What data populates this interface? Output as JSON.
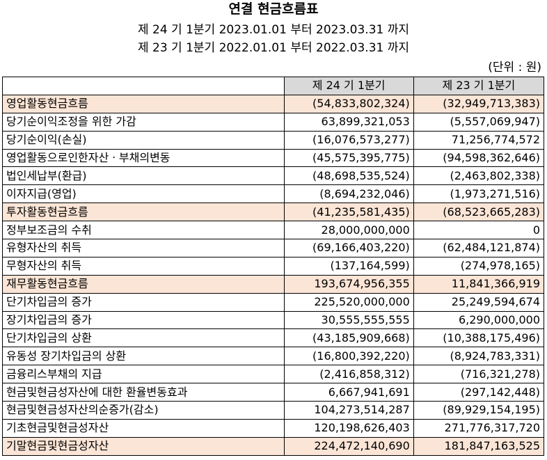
{
  "title": "연결 현금흐름표",
  "periods": [
    "제 24 기 1분기 2023.01.01 부터 2023.03.31 까지",
    "제 23 기 1분기 2022.01.01 부터 2022.03.31 까지"
  ],
  "unit": "(단위 : 원)",
  "columns": [
    "",
    "제 24 기 1분기",
    "제 23 기 1분기"
  ],
  "colors": {
    "section_bg": "#fbe5d6",
    "header_bg": "#d9d9d9"
  },
  "rows": [
    {
      "label": "영업활동현금흐름",
      "current": "(54,833,802,324)",
      "prior": "(32,949,713,383)",
      "kind": "section"
    },
    {
      "label": "당기순이익조정을 위한 가감",
      "current": "63,899,321,053",
      "prior": "(5,557,069,947)",
      "kind": "item"
    },
    {
      "label": "당기순이익(손실)",
      "current": "(16,076,573,277)",
      "prior": "71,256,774,572",
      "kind": "item"
    },
    {
      "label": "영업활동으로인한자산ㆍ부채의변동",
      "current": "(45,575,395,775)",
      "prior": "(94,598,362,646)",
      "kind": "item"
    },
    {
      "label": "법인세납부(환급)",
      "current": "(48,698,535,524)",
      "prior": "(2,463,802,338)",
      "kind": "item"
    },
    {
      "label": "이자지급(영업)",
      "current": "(8,694,232,046)",
      "prior": "(1,973,271,516)",
      "kind": "item"
    },
    {
      "label": "투자활동현금흐름",
      "current": "(41,235,581,435)",
      "prior": "(68,523,665,283)",
      "kind": "section"
    },
    {
      "label": "정부보조금의 수취",
      "current": "28,000,000,000",
      "prior": "0",
      "kind": "item"
    },
    {
      "label": "유형자산의 취득",
      "current": "(69,166,403,220)",
      "prior": "(62,484,121,874)",
      "kind": "item"
    },
    {
      "label": "무형자산의 취득",
      "current": "(137,164,599)",
      "prior": "(274,978,165)",
      "kind": "item"
    },
    {
      "label": "재무활동현금흐름",
      "current": "193,674,956,355",
      "prior": "11,841,366,919",
      "kind": "section"
    },
    {
      "label": "단기차입금의 증가",
      "current": "225,520,000,000",
      "prior": "25,249,594,674",
      "kind": "item"
    },
    {
      "label": "장기차입금의 증가",
      "current": "30,555,555,555",
      "prior": "6,290,000,000",
      "kind": "item"
    },
    {
      "label": "단기차입금의 상환",
      "current": "(43,185,909,668)",
      "prior": "(10,388,175,496)",
      "kind": "item"
    },
    {
      "label": "유동성 장기차입금의 상환",
      "current": "(16,800,392,220)",
      "prior": "(8,924,783,331)",
      "kind": "item"
    },
    {
      "label": "금융리스부채의 지급",
      "current": "(2,416,858,312)",
      "prior": "(716,321,278)",
      "kind": "item"
    },
    {
      "label": "현금및현금성자산에 대한 환율변동효과",
      "current": "6,667,941,691",
      "prior": "(297,142,448)",
      "kind": "plain"
    },
    {
      "label": "현금및현금성자산의순증가(감소)",
      "current": "104,273,514,287",
      "prior": "(89,929,154,195)",
      "kind": "plain"
    },
    {
      "label": "기초현금및현금성자산",
      "current": "120,198,626,403",
      "prior": "271,776,317,720",
      "kind": "plain"
    },
    {
      "label": "기말현금및현금성자산",
      "current": "224,472,140,690",
      "prior": "181,847,163,525",
      "kind": "total"
    }
  ]
}
